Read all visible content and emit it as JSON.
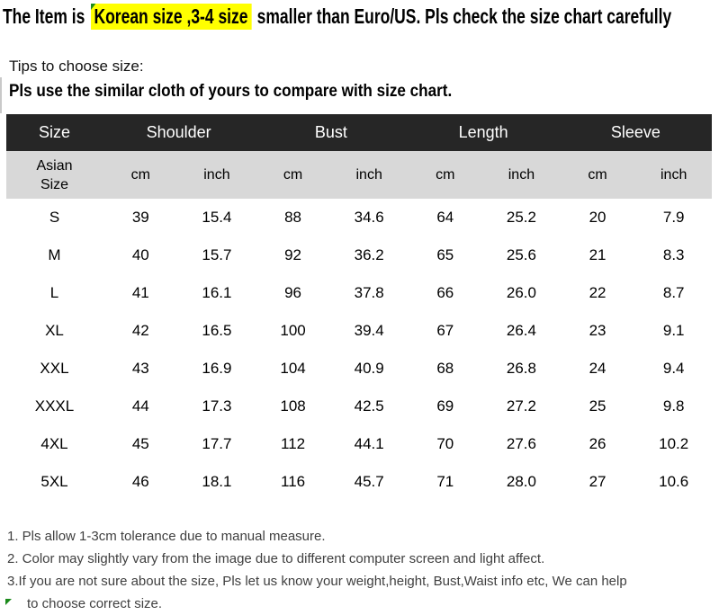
{
  "banner": {
    "prefix": "The Item is",
    "highlight": "Korean size ,3-4 size",
    "suffix": "smaller than Euro/US. Pls check the size chart carefully"
  },
  "tips": {
    "title": "Tips to choose size:",
    "advice": "Pls use the similar cloth of yours to compare with size chart."
  },
  "size_table": {
    "groups": [
      "Size",
      "Shoulder",
      "Bust",
      "Length",
      "Sleeve"
    ],
    "row_header_label": "Asian Size",
    "unit_cm": "cm",
    "unit_inch": "inch",
    "rows": [
      [
        "S",
        "39",
        "15.4",
        "88",
        "34.6",
        "64",
        "25.2",
        "20",
        "7.9"
      ],
      [
        "M",
        "40",
        "15.7",
        "92",
        "36.2",
        "65",
        "25.6",
        "21",
        "8.3"
      ],
      [
        "L",
        "41",
        "16.1",
        "96",
        "37.8",
        "66",
        "26.0",
        "22",
        "8.7"
      ],
      [
        "XL",
        "42",
        "16.5",
        "100",
        "39.4",
        "67",
        "26.4",
        "23",
        "9.1"
      ],
      [
        "XXL",
        "43",
        "16.9",
        "104",
        "40.9",
        "68",
        "26.8",
        "24",
        "9.4"
      ],
      [
        "XXXL",
        "44",
        "17.3",
        "108",
        "42.5",
        "69",
        "27.2",
        "25",
        "9.8"
      ],
      [
        "4XL",
        "45",
        "17.7",
        "112",
        "44.1",
        "70",
        "27.6",
        "26",
        "10.2"
      ],
      [
        "5XL",
        "46",
        "18.1",
        "116",
        "45.7",
        "71",
        "28.0",
        "27",
        "10.6"
      ]
    ]
  },
  "notes": {
    "line1": "1. Pls allow 1-3cm tolerance due to manual measure.",
    "line2": "2. Color may slightly vary from the image due to different computer screen and light affect.",
    "line3": "3.If you are not sure about the size, Pls let us know your weight,height, Bust,Waist info etc, We can help",
    "line4": "to choose correct size."
  },
  "colors": {
    "table_header_bg": "#262626",
    "table_header_text": "#ffffff",
    "table_subheader_bg": "#d8d8d8",
    "highlight_bg": "#ffff00",
    "corner_marker_green": "#1a8a1a"
  }
}
